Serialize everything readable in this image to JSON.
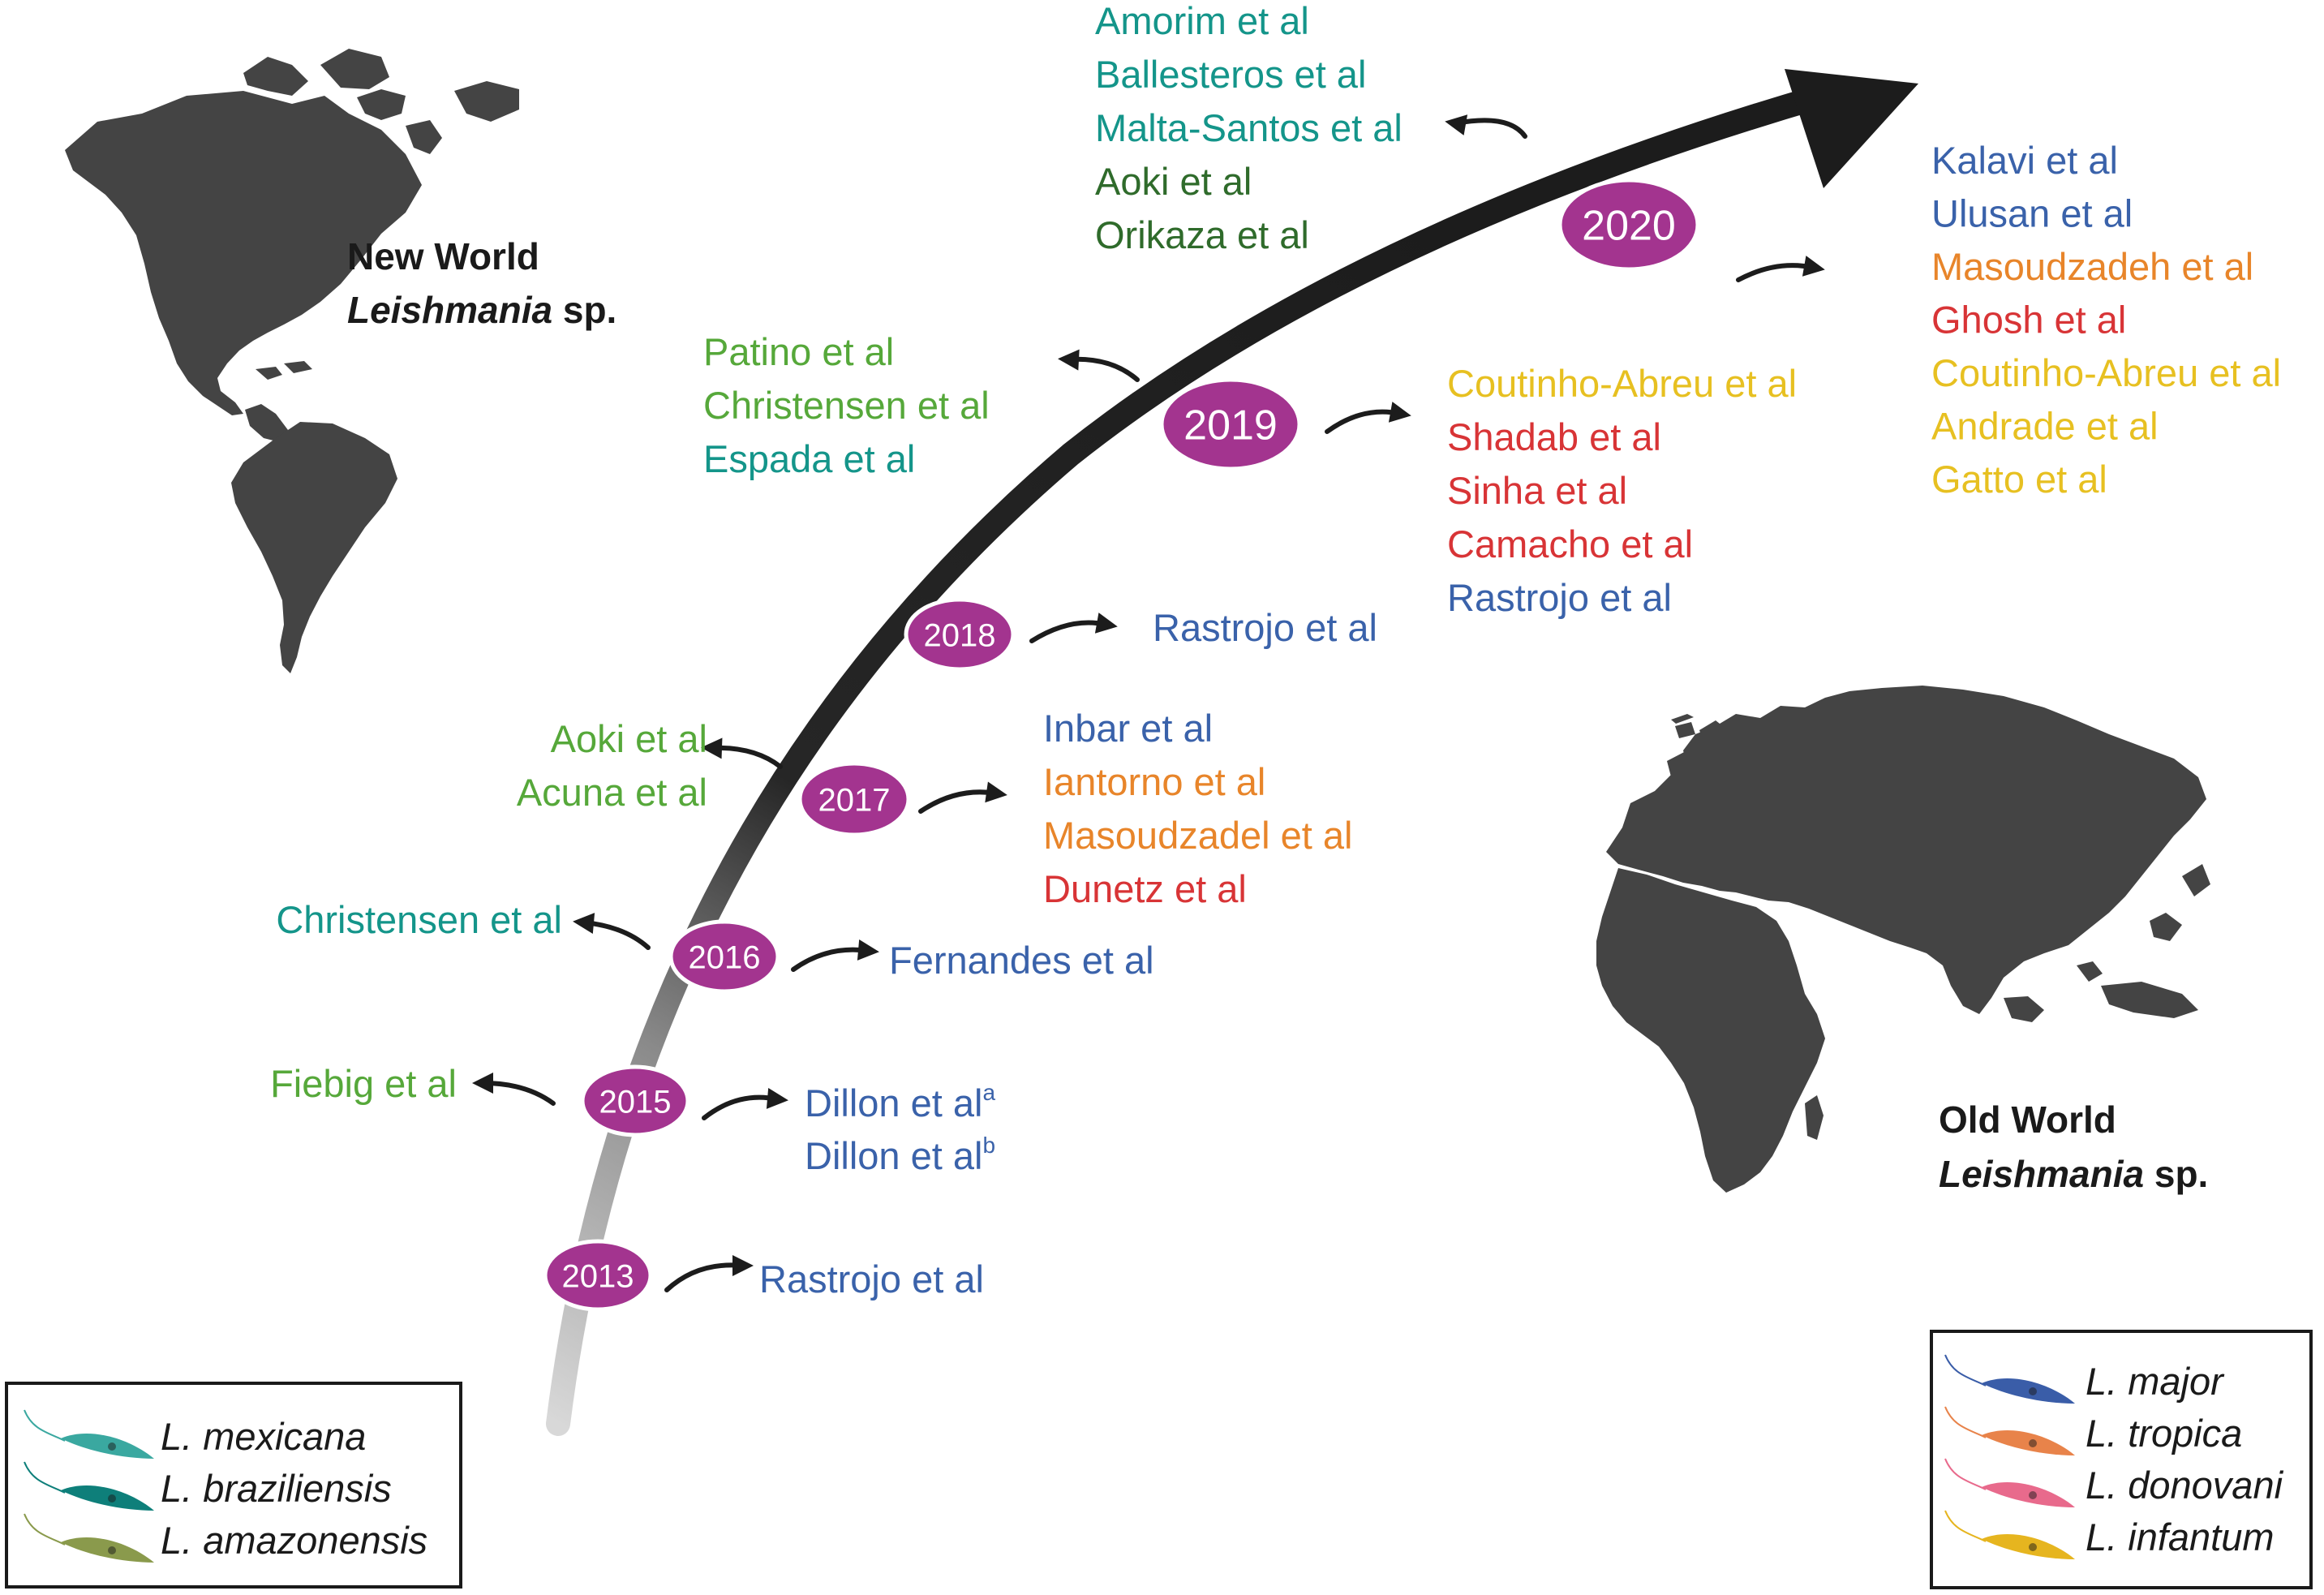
{
  "colors": {
    "arrow": "#1c1c1c",
    "node": "#a3348f",
    "dark_green": "#2f6b2b",
    "green": "#56a83a",
    "teal": "#14958a",
    "blue": "#3a62aa",
    "orange": "#e8852a",
    "red": "#d83436",
    "yellow": "#e7c021",
    "map": "#444444"
  },
  "map_labels": {
    "new_world_line1": "New World",
    "new_world_italic": "Leishmania",
    "new_world_suffix": " sp.",
    "old_world_line1": "Old World",
    "old_world_italic": "Leishmania",
    "old_world_suffix": " sp."
  },
  "years": [
    "2013",
    "2015",
    "2016",
    "2017",
    "2018",
    "2019",
    "2020"
  ],
  "studies": [
    {
      "year": "2013",
      "side": "right",
      "entries": [
        {
          "text": "Rastrojo et al",
          "color": "blue"
        }
      ]
    },
    {
      "year": "2015",
      "side": "left",
      "entries": [
        {
          "text": "Fiebig et al",
          "color": "green"
        }
      ]
    },
    {
      "year": "2015",
      "side": "right",
      "entries": [
        {
          "text": "Dillon et al",
          "sup": "a",
          "color": "blue"
        },
        {
          "text": "Dillon et al",
          "sup": "b",
          "color": "blue"
        }
      ]
    },
    {
      "year": "2016",
      "side": "left",
      "entries": [
        {
          "text": "Christensen et al",
          "color": "teal"
        }
      ]
    },
    {
      "year": "2016",
      "side": "right",
      "entries": [
        {
          "text": "Fernandes et al",
          "color": "blue"
        }
      ]
    },
    {
      "year": "2017",
      "side": "left",
      "entries": [
        {
          "text": "Aoki et al",
          "color": "green"
        },
        {
          "text": "Acuna et al",
          "color": "green"
        }
      ]
    },
    {
      "year": "2017",
      "side": "right",
      "entries": [
        {
          "text": "Inbar et al",
          "color": "blue"
        },
        {
          "text": "Iantorno et al",
          "color": "orange"
        },
        {
          "text": "Masoudzadel et al",
          "color": "orange"
        },
        {
          "text": "Dunetz et al",
          "color": "red"
        }
      ]
    },
    {
      "year": "2018",
      "side": "right",
      "entries": [
        {
          "text": "Rastrojo et al",
          "color": "blue"
        }
      ]
    },
    {
      "year": "2019",
      "side": "left",
      "entries": [
        {
          "text": "Patino et al",
          "color": "green"
        },
        {
          "text": "Christensen  et al",
          "color": "green"
        },
        {
          "text": "Espada et al",
          "color": "teal"
        }
      ]
    },
    {
      "year": "2019",
      "side": "right",
      "entries": [
        {
          "text": "Coutinho-Abreu et al",
          "color": "yellow"
        },
        {
          "text": "Shadab et al",
          "color": "red"
        },
        {
          "text": "Sinha et al",
          "color": "red"
        },
        {
          "text": "Camacho et al",
          "color": "red"
        },
        {
          "text": "Rastrojo et al",
          "color": "blue"
        }
      ]
    },
    {
      "year": "2020",
      "side": "left",
      "entries": [
        {
          "text": "Amorim et al",
          "color": "teal"
        },
        {
          "text": "Ballesteros et al",
          "color": "teal"
        },
        {
          "text": "Malta-Santos et al",
          "color": "teal"
        },
        {
          "text": "Aoki et al",
          "color": "dark_green"
        },
        {
          "text": "Orikaza et al",
          "color": "dark_green"
        }
      ]
    },
    {
      "year": "2020",
      "side": "right",
      "entries": [
        {
          "text": "Kalavi et al",
          "color": "blue"
        },
        {
          "text": "Ulusan et al",
          "color": "blue"
        },
        {
          "text": "Masoudzadeh et al",
          "color": "orange"
        },
        {
          "text": "Ghosh et al",
          "color": "red"
        },
        {
          "text": "Coutinho-Abreu et al",
          "color": "yellow"
        },
        {
          "text": "Andrade et al",
          "color": "yellow"
        },
        {
          "text": "Gatto et al",
          "color": "yellow"
        }
      ]
    }
  ],
  "legend_new_world": [
    {
      "name": "L. mexicana",
      "color": "#3aa8a0"
    },
    {
      "name": "L. braziliensis",
      "color": "#0e7f7a"
    },
    {
      "name": "L. amazonensis",
      "color": "#8a9a4c"
    }
  ],
  "legend_old_world": [
    {
      "name": "L. major",
      "color": "#3a5da8"
    },
    {
      "name": "L. tropica",
      "color": "#e8834a"
    },
    {
      "name": "L. donovani",
      "color": "#e86a8c"
    },
    {
      "name": "L. infantum",
      "color": "#e6b51f"
    }
  ]
}
